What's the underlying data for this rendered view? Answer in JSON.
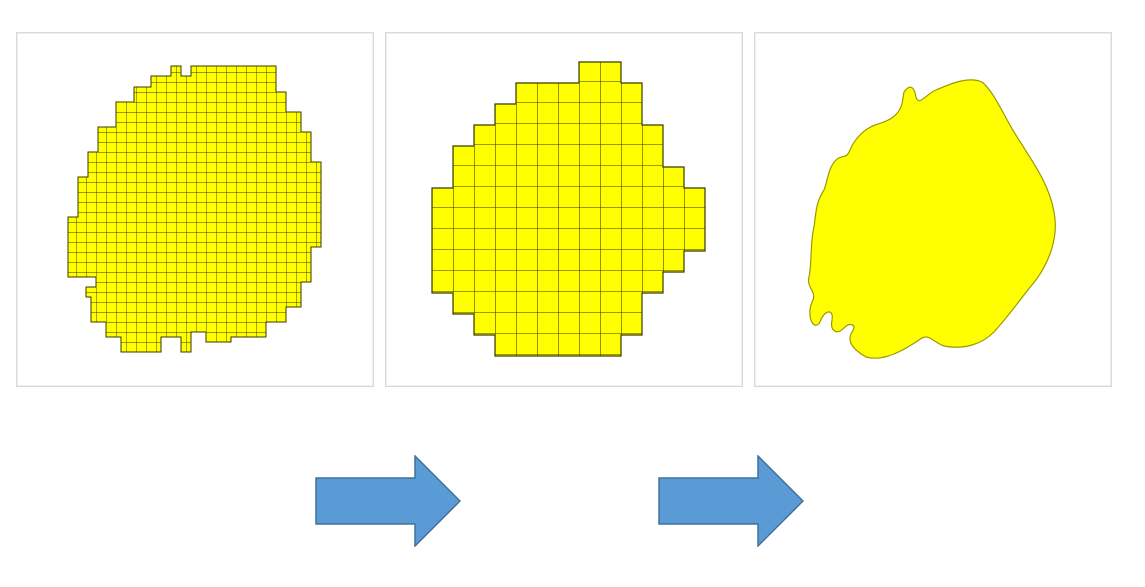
{
  "colors": {
    "fill": "#ffff00",
    "grid_line": "#3a3a00",
    "outline": "#9a9a00",
    "arrow_fill": "#5b9bd5",
    "arrow_stroke": "#41719c",
    "panel_border": "#d9d9d9"
  },
  "panels": [
    {
      "name": "fine-grid-shape",
      "style": "grid"
    },
    {
      "name": "coarse-grid-shape",
      "style": "grid"
    },
    {
      "name": "smooth-outline-shape",
      "style": "solid"
    }
  ],
  "arrows": [
    {
      "direction": "right",
      "icon": "arrow-right-icon"
    },
    {
      "direction": "right",
      "icon": "arrow-right-icon"
    }
  ]
}
